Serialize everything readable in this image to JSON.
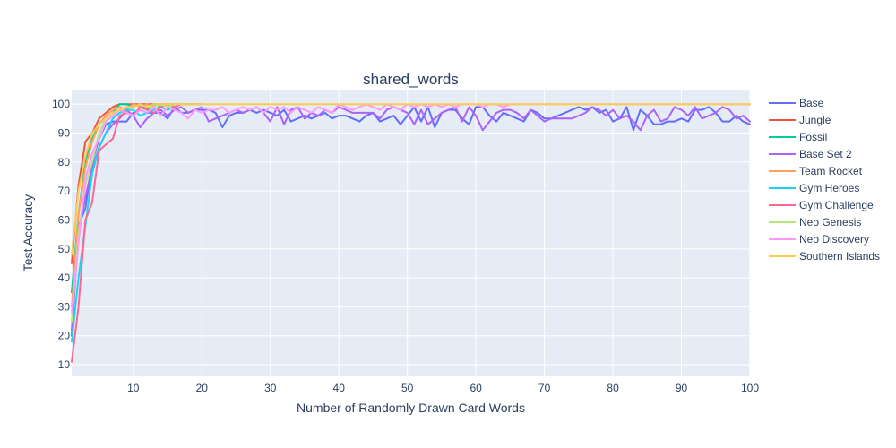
{
  "chart_data": {
    "type": "line",
    "title": "shared_words",
    "xlabel": "Number of Randomly Drawn Card Words",
    "ylabel": "Test Accuracy",
    "xlim": [
      1,
      100
    ],
    "ylim": [
      6,
      105
    ],
    "xticks": [
      10,
      20,
      30,
      40,
      50,
      60,
      70,
      80,
      90,
      100
    ],
    "yticks": [
      10,
      20,
      30,
      40,
      50,
      60,
      70,
      80,
      90,
      100
    ],
    "grid": true,
    "legend_position": "right",
    "series": [
      {
        "name": "Base",
        "color": "#636efa",
        "x": [
          1,
          2,
          3,
          4,
          5,
          6,
          7,
          8,
          9,
          10,
          11,
          12,
          13,
          14,
          15,
          16,
          17,
          18,
          19,
          20,
          21,
          22,
          23,
          24,
          25,
          26,
          27,
          28,
          29,
          30,
          31,
          32,
          33,
          34,
          35,
          36,
          37,
          38,
          39,
          40,
          41,
          42,
          43,
          44,
          45,
          46,
          47,
          48,
          49,
          50,
          51,
          52,
          53,
          54,
          55,
          56,
          57,
          58,
          59,
          60,
          61,
          62,
          63,
          64,
          65,
          66,
          67,
          68,
          69,
          70,
          71,
          72,
          73,
          74,
          75,
          76,
          77,
          78,
          79,
          80,
          81,
          82,
          83,
          84,
          85,
          86,
          87,
          88,
          89,
          90,
          91,
          92,
          93,
          94,
          95,
          96,
          97,
          98,
          99,
          100
        ],
        "values": [
          20,
          58,
          64,
          80,
          88,
          93,
          94,
          94,
          94,
          97,
          98,
          97,
          97,
          97,
          95,
          99,
          97,
          97,
          98,
          98,
          98,
          97,
          92,
          96,
          97,
          97,
          98,
          97,
          98,
          97,
          96,
          98,
          94,
          95,
          96,
          95,
          96,
          97,
          95,
          96,
          96,
          95,
          94,
          96,
          97,
          94,
          95,
          96,
          93,
          96,
          99,
          94,
          99,
          92,
          97,
          98,
          98,
          95,
          93,
          99,
          99,
          96,
          94,
          97,
          96,
          95,
          94,
          98,
          97,
          95,
          95,
          96,
          97,
          98,
          99,
          98,
          99,
          97,
          98,
          94,
          95,
          99,
          91,
          98,
          96,
          93,
          93,
          94,
          94,
          95,
          94,
          98,
          98,
          99,
          97,
          94,
          94,
          96,
          94,
          93
        ]
      },
      {
        "name": "Jungle",
        "color": "#ef553b",
        "x": [
          1,
          2,
          3,
          4,
          5,
          6,
          7,
          8,
          9,
          10,
          11,
          12,
          13,
          14,
          15,
          16,
          17,
          18,
          19,
          20
        ],
        "values": [
          45,
          72,
          87,
          90,
          95,
          97,
          99,
          100,
          100,
          100,
          100,
          100,
          100,
          100,
          100,
          100,
          100,
          100,
          100,
          100
        ]
      },
      {
        "name": "Fossil",
        "color": "#00cc96",
        "x": [
          1,
          2,
          3,
          4,
          5,
          6,
          7,
          8,
          9,
          10,
          11,
          12,
          13,
          14,
          15,
          16,
          17,
          18,
          19,
          20
        ],
        "values": [
          35,
          62,
          80,
          88,
          93,
          95,
          97,
          100,
          100,
          99,
          100,
          98,
          100,
          99,
          100,
          99,
          100,
          100,
          100,
          100
        ]
      },
      {
        "name": "Base Set 2",
        "color": "#ab63fa",
        "x": [
          1,
          2,
          3,
          4,
          5,
          6,
          7,
          8,
          9,
          10,
          11,
          12,
          13,
          14,
          15,
          16,
          17,
          18,
          19,
          20,
          21,
          22,
          23,
          24,
          25,
          26,
          27,
          28,
          29,
          30,
          31,
          32,
          33,
          34,
          35,
          36,
          37,
          38,
          39,
          40,
          41,
          42,
          43,
          44,
          45,
          46,
          47,
          48,
          49,
          50,
          51,
          52,
          53,
          54,
          55,
          56,
          57,
          58,
          59,
          60,
          61,
          62,
          63,
          64,
          65,
          66,
          67,
          68,
          69,
          70,
          71,
          72,
          73,
          74,
          75,
          76,
          77,
          78,
          79,
          80,
          81,
          82,
          83,
          84,
          85,
          86,
          87,
          88,
          89,
          90,
          91,
          92,
          93,
          94,
          95,
          96,
          97,
          98,
          99,
          100
        ],
        "values": [
          22,
          55,
          68,
          78,
          85,
          90,
          93,
          95,
          98,
          96,
          92,
          95,
          97,
          98,
          96,
          98,
          99,
          97,
          98,
          99,
          94,
          95,
          96,
          97,
          98,
          97,
          98,
          99,
          97,
          94,
          99,
          93,
          98,
          99,
          95,
          97,
          96,
          98,
          97,
          99,
          98,
          97,
          97,
          97,
          97,
          95,
          98,
          99,
          98,
          97,
          93,
          98,
          93,
          95,
          97,
          98,
          99,
          94,
          99,
          96,
          91,
          94,
          97,
          98,
          98,
          97,
          95,
          98,
          96,
          94,
          95,
          95,
          95,
          95,
          96,
          97,
          99,
          98,
          96,
          98,
          95,
          96,
          94,
          91,
          96,
          98,
          94,
          95,
          99,
          98,
          96,
          99,
          95,
          96,
          97,
          99,
          98,
          95,
          96,
          94
        ]
      },
      {
        "name": "Team Rocket",
        "color": "#ffa15a",
        "x": [
          1,
          2,
          3,
          4,
          5,
          6,
          7,
          8,
          9,
          10,
          11,
          12,
          13,
          14,
          15,
          16,
          17,
          18,
          19,
          20
        ],
        "values": [
          30,
          62,
          78,
          87,
          93,
          96,
          98,
          99,
          98,
          100,
          99,
          100,
          99,
          100,
          100,
          100,
          100,
          100,
          100,
          100
        ]
      },
      {
        "name": "Gym Heroes",
        "color": "#19d3f3",
        "x": [
          1,
          2,
          3,
          4,
          5,
          6,
          7,
          8,
          9,
          10,
          11,
          12,
          13,
          14,
          15,
          16,
          17,
          18,
          19,
          20
        ],
        "values": [
          18,
          40,
          58,
          76,
          85,
          90,
          95,
          97,
          98,
          98,
          96,
          97,
          98,
          99,
          98,
          99,
          100,
          100,
          100,
          100
        ]
      },
      {
        "name": "Gym Challenge",
        "color": "#ff6692",
        "x": [
          1,
          2,
          3,
          4,
          5,
          6,
          7,
          8,
          9,
          10,
          11,
          12,
          13,
          14,
          15,
          16,
          17,
          18,
          19,
          20
        ],
        "values": [
          11,
          30,
          60,
          66,
          84,
          86,
          88,
          96,
          97,
          96,
          99,
          98,
          97,
          99,
          100,
          99,
          100,
          100,
          100,
          100
        ]
      },
      {
        "name": "Neo Genesis",
        "color": "#b6e880",
        "x": [
          1,
          2,
          3,
          4,
          5,
          6,
          7,
          8,
          9,
          10,
          11,
          12,
          13,
          14,
          15,
          16,
          17,
          18,
          19,
          20
        ],
        "values": [
          25,
          55,
          72,
          80,
          90,
          95,
          97,
          98,
          99,
          99,
          100,
          99,
          99,
          100,
          99,
          100,
          100,
          100,
          100,
          100
        ]
      },
      {
        "name": "Neo Discovery",
        "color": "#ff97ff",
        "x": [
          1,
          2,
          3,
          4,
          5,
          6,
          7,
          8,
          9,
          10,
          11,
          12,
          13,
          14,
          15,
          16,
          17,
          18,
          19,
          20,
          21,
          22,
          23,
          24,
          25,
          26,
          27,
          28,
          29,
          30,
          31,
          32,
          33,
          34,
          35,
          36,
          37,
          38,
          39,
          40,
          41,
          42,
          43,
          44,
          45,
          46,
          47,
          48,
          49,
          50,
          51,
          52,
          53,
          54,
          55,
          56,
          57,
          58,
          59,
          60,
          61,
          62,
          63,
          64,
          65,
          66,
          67,
          68,
          69,
          70,
          71,
          72,
          73,
          74,
          75,
          76,
          77,
          78,
          79,
          80,
          81,
          82,
          83,
          84,
          85,
          86,
          87,
          88,
          89,
          90,
          91,
          92,
          93,
          94,
          95,
          96,
          97,
          98,
          99,
          100
        ],
        "values": [
          28,
          52,
          74,
          83,
          88,
          94,
          96,
          98,
          97,
          96,
          98,
          97,
          99,
          96,
          99,
          98,
          97,
          95,
          98,
          97,
          98,
          98,
          99,
          97,
          98,
          99,
          98,
          99,
          97,
          99,
          98,
          99,
          97,
          99,
          98,
          97,
          99,
          98,
          97,
          100,
          99,
          98,
          99,
          100,
          99,
          98,
          100,
          99,
          98,
          100,
          99,
          100,
          99,
          100,
          99,
          100,
          99,
          100,
          100,
          100,
          99,
          100,
          100,
          99,
          100,
          100,
          100,
          100,
          100,
          100,
          100,
          100,
          100,
          100,
          100,
          100,
          100,
          100,
          100,
          100,
          100,
          100,
          100,
          100,
          100,
          100,
          100,
          100,
          100,
          100,
          100,
          100,
          100,
          100,
          100,
          100,
          100,
          100,
          100,
          100
        ]
      },
      {
        "name": "Southern Islands",
        "color": "#fecb52",
        "x": [
          1,
          2,
          3,
          4,
          5,
          6,
          7,
          8,
          9,
          10,
          11,
          12,
          13,
          14,
          15,
          16,
          17,
          18,
          19,
          20,
          21,
          22,
          23,
          24,
          25,
          26,
          27,
          28,
          29,
          30,
          31,
          32,
          33,
          34,
          35,
          36,
          37,
          38,
          39,
          40,
          41,
          42,
          43,
          44,
          45,
          46,
          47,
          48,
          49,
          50,
          51,
          52,
          53,
          54,
          55,
          56,
          57,
          58,
          59,
          60,
          61,
          62,
          63,
          64,
          65,
          66,
          67,
          68,
          69,
          70,
          71,
          72,
          73,
          74,
          75,
          76,
          77,
          78,
          79,
          80,
          81,
          82,
          83,
          84,
          85,
          86,
          87,
          88,
          89,
          90,
          91,
          92,
          93,
          94,
          95,
          96,
          97,
          98,
          99,
          100
        ],
        "values": [
          48,
          70,
          82,
          90,
          93,
          95,
          97,
          98,
          99,
          99,
          100,
          99,
          100,
          100,
          100,
          100,
          100,
          100,
          100,
          100,
          100,
          100,
          100,
          100,
          100,
          100,
          100,
          100,
          100,
          100,
          100,
          100,
          100,
          100,
          100,
          100,
          100,
          100,
          100,
          100,
          100,
          100,
          100,
          100,
          100,
          100,
          100,
          100,
          100,
          100,
          100,
          100,
          100,
          100,
          100,
          100,
          100,
          100,
          100,
          100,
          100,
          100,
          100,
          100,
          100,
          100,
          100,
          100,
          100,
          100,
          100,
          100,
          100,
          100,
          100,
          100,
          100,
          100,
          100,
          100,
          100,
          100,
          100,
          100,
          100,
          100,
          100,
          100,
          100,
          100,
          100,
          100,
          100,
          100,
          100,
          100,
          100,
          100,
          100,
          100
        ]
      }
    ]
  }
}
